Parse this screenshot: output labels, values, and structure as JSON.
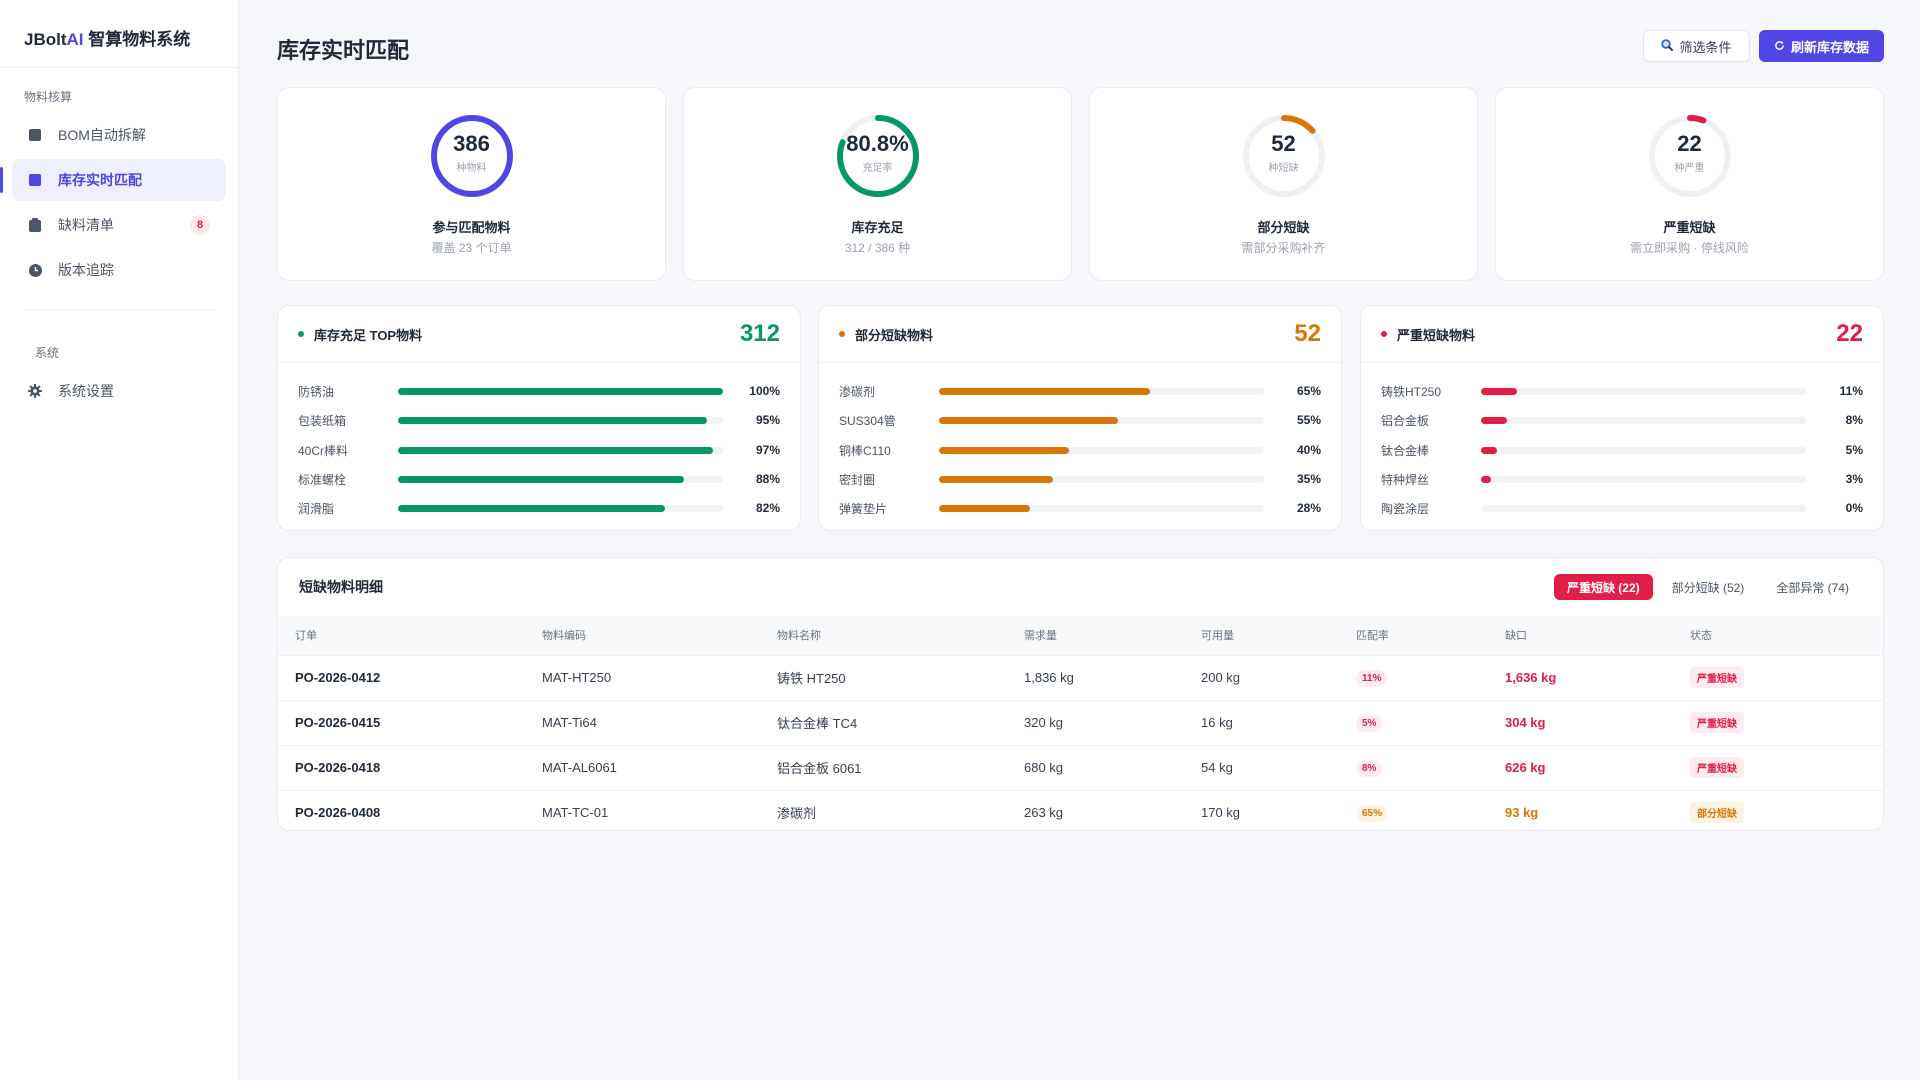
{
  "brand": {
    "prefix": "JBolt",
    "accent": "AI",
    "suffix": " 智算物料系统"
  },
  "sidebar": {
    "section_material": "物料核算",
    "section_system": "系统",
    "items": [
      {
        "label": "BOM自动拆解",
        "icon": "square-icon"
      },
      {
        "label": "库存实时匹配",
        "icon": "square-icon",
        "active": true
      },
      {
        "label": "缺料清单",
        "icon": "clipboard-icon",
        "badge": "8"
      },
      {
        "label": "版本追踪",
        "icon": "clock-icon"
      }
    ],
    "system_items": [
      {
        "label": "系统设置",
        "icon": "gear-icon"
      }
    ]
  },
  "header": {
    "title": "库存实时匹配",
    "filter_label": "筛选条件",
    "refresh_label": "刷新库存数据"
  },
  "kpis": [
    {
      "value": "386",
      "unit": "种物料",
      "title": "参与匹配物料",
      "sub": "覆盖 23 个订单",
      "ratio": 1.0,
      "color": "#4f46e5"
    },
    {
      "value": "80.8%",
      "unit": "充足率",
      "title": "库存充足",
      "sub": "312 / 386 种",
      "ratio": 0.808,
      "color": "#059669"
    },
    {
      "value": "52",
      "unit": "种短缺",
      "title": "部分短缺",
      "sub": "需部分采购补齐",
      "ratio": 0.135,
      "color": "#d97706"
    },
    {
      "value": "22",
      "unit": "种严重",
      "title": "严重短缺",
      "sub": "需立即采购 · 停线风险",
      "ratio": 0.057,
      "color": "#e11d48"
    }
  ],
  "panels": [
    {
      "title": "库存充足 TOP物料",
      "count": "312",
      "color": "#059669",
      "rows": [
        {
          "name": "防锈油",
          "pct": "100%",
          "value": 1.0
        },
        {
          "name": "包装纸箱",
          "pct": "95%",
          "value": 0.95
        },
        {
          "name": "40Cr棒料",
          "pct": "97%",
          "value": 0.97
        },
        {
          "name": "标准螺栓",
          "pct": "88%",
          "value": 0.88
        },
        {
          "name": "润滑脂",
          "pct": "82%",
          "value": 0.82
        }
      ]
    },
    {
      "title": "部分短缺物料",
      "count": "52",
      "color": "#d97706",
      "rows": [
        {
          "name": "渗碳剂",
          "pct": "65%",
          "value": 0.65
        },
        {
          "name": "SUS304管",
          "pct": "55%",
          "value": 0.55
        },
        {
          "name": "铜棒C110",
          "pct": "40%",
          "value": 0.4
        },
        {
          "name": "密封圈",
          "pct": "35%",
          "value": 0.35
        },
        {
          "name": "弹簧垫片",
          "pct": "28%",
          "value": 0.28
        }
      ]
    },
    {
      "title": "严重短缺物料",
      "count": "22",
      "color": "#e11d48",
      "rows": [
        {
          "name": "铸铁HT250",
          "pct": "11%",
          "value": 0.11
        },
        {
          "name": "铝合金板",
          "pct": "8%",
          "value": 0.08
        },
        {
          "name": "钛合金棒",
          "pct": "5%",
          "value": 0.05
        },
        {
          "name": "特种焊丝",
          "pct": "3%",
          "value": 0.03
        },
        {
          "name": "陶瓷涂层",
          "pct": "0%",
          "value": 0.0
        }
      ]
    }
  ],
  "table": {
    "title": "短缺物料明细",
    "tabs": [
      "严重短缺 (22)",
      "部分短缺 (52)",
      "全部异常 (74)"
    ],
    "columns": [
      "订单",
      "物料编码",
      "物料名称",
      "需求量",
      "可用量",
      "匹配率",
      "缺口",
      "状态"
    ],
    "rows": [
      {
        "order": "PO-2026-0412",
        "code": "MAT-HT250",
        "name": "铸铁 HT250",
        "demand": "1,836 kg",
        "avail": "200 kg",
        "rate": "11%",
        "gap": "1,636 kg",
        "status": "严重短缺",
        "level": "red"
      },
      {
        "order": "PO-2026-0415",
        "code": "MAT-Ti64",
        "name": "钛合金棒 TC4",
        "demand": "320 kg",
        "avail": "16 kg",
        "rate": "5%",
        "gap": "304 kg",
        "status": "严重短缺",
        "level": "red"
      },
      {
        "order": "PO-2026-0418",
        "code": "MAT-AL6061",
        "name": "铝合金板 6061",
        "demand": "680 kg",
        "avail": "54 kg",
        "rate": "8%",
        "gap": "626 kg",
        "status": "严重短缺",
        "level": "red"
      },
      {
        "order": "PO-2026-0408",
        "code": "MAT-TC-01",
        "name": "渗碳剂",
        "demand": "263 kg",
        "avail": "170 kg",
        "rate": "65%",
        "gap": "93 kg",
        "status": "部分短缺",
        "level": "orange"
      }
    ]
  }
}
